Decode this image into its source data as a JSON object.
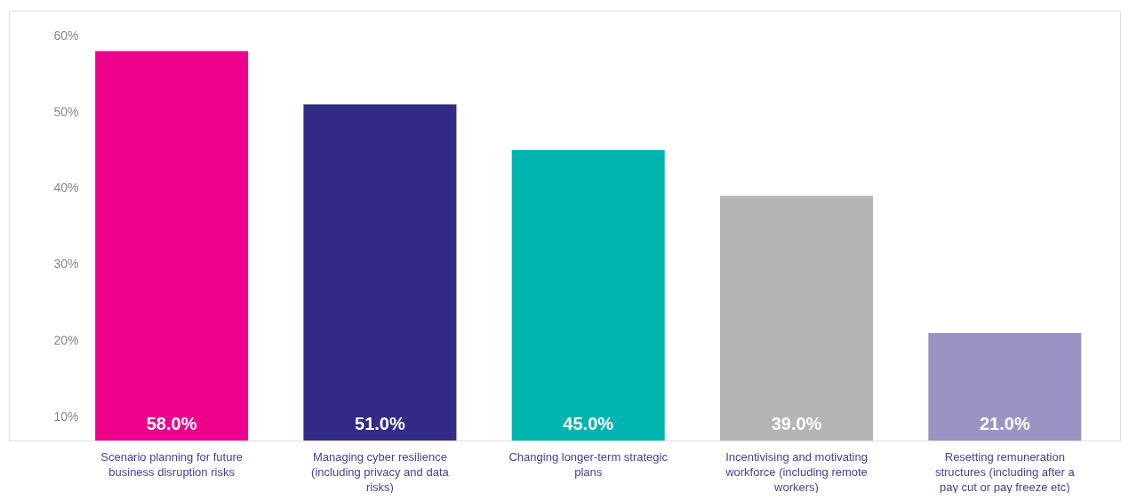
{
  "chart_data": {
    "type": "bar",
    "categories": [
      "Scenario planning for future business disruption risks",
      "Managing cyber resilience (including privacy and data risks)",
      "Changing longer-term strategic plans",
      "Incentivising and motivating workforce (including remote workers)",
      "Resetting remuneration structures (including after a pay cut or pay freeze etc)"
    ],
    "values": [
      58.0,
      51.0,
      45.0,
      39.0,
      21.0
    ],
    "colors": [
      "#ec008c",
      "#332a86",
      "#00b5b0",
      "#b5b5b5",
      "#9b93c4"
    ],
    "value_labels": [
      "58.0%",
      "51.0%",
      "45.0%",
      "39.0%",
      "21.0%"
    ],
    "ylim": [
      6.9,
      63.3
    ],
    "yticks": [
      {
        "value": 10,
        "label": "10%"
      },
      {
        "value": 20,
        "label": "20%"
      },
      {
        "value": 30,
        "label": "30%"
      },
      {
        "value": 40,
        "label": "40%"
      },
      {
        "value": 50,
        "label": "50%"
      },
      {
        "value": 60,
        "label": "60%"
      }
    ],
    "grid": false
  }
}
